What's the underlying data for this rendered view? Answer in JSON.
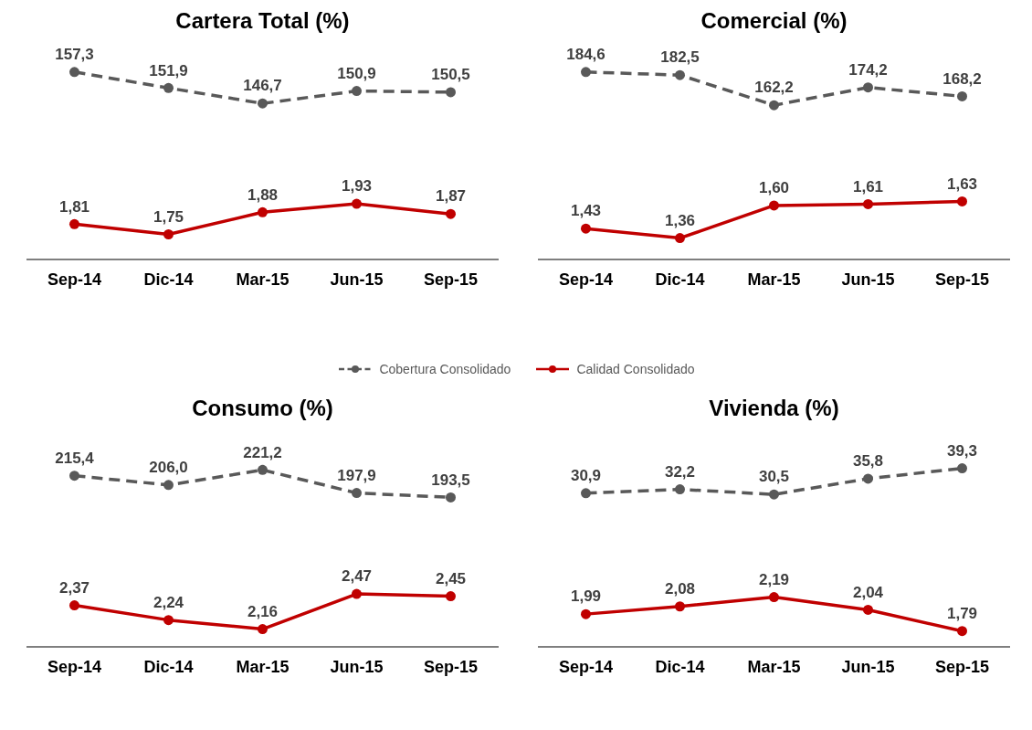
{
  "chart_data": [
    {
      "type": "line",
      "title": "Cartera Total (%)",
      "categories": [
        null,
        null,
        null,
        null,
        null
      ],
      "marker": "circle",
      "legend": "bottom",
      "tick_labels": false,
      "grid": false,
      "series": [
        {
          "name": "Cobertura Consolidado",
          "color": "#595959",
          "line_style": "dashed",
          "values": [
            157.3,
            151.9,
            146.7,
            150.9,
            150.5
          ],
          "value_labels": [
            "157,3",
            "151,9",
            "146,7",
            "150,9",
            "150,5"
          ]
        }
      ]
    },
    {
      "type": "line",
      "categories": [
        "Sep-14",
        "Dic-14",
        "Mar-15",
        "Jun-15",
        "Sep-15"
      ],
      "marker": "circle",
      "legend": "bottom",
      "tick_labels": "x",
      "grid": false,
      "series": [
        {
          "name": "Calidad Consolidado",
          "color": "#c00000",
          "line_style": "solid",
          "values": [
            1.81,
            1.75,
            1.88,
            1.93,
            1.87
          ],
          "value_labels": [
            "1,81",
            "1,75",
            "1,88",
            "1,93",
            "1,87"
          ]
        }
      ]
    },
    {
      "type": "line",
      "title": "Comercial (%)",
      "categories": [
        null,
        null,
        null,
        null,
        null
      ],
      "marker": "circle",
      "tick_labels": false,
      "grid": false,
      "series": [
        {
          "color": "#595959",
          "line_style": "dashed",
          "values": [
            184.6,
            182.5,
            162.2,
            174.2,
            168.2
          ],
          "value_labels": [
            "184,6",
            "182,5",
            "162,2",
            "174,2",
            "168,2"
          ]
        }
      ]
    },
    {
      "type": "line",
      "categories": [
        "Sep-14",
        "Dic-14",
        "Mar-15",
        "Jun-15",
        "Sep-15"
      ],
      "marker": "circle",
      "tick_labels": "x",
      "grid": false,
      "series": [
        {
          "color": "#c00000",
          "line_style": "solid",
          "values": [
            1.43,
            1.36,
            1.6,
            1.61,
            1.63
          ],
          "value_labels": [
            "1,43",
            "1,36",
            "1,60",
            "1,61",
            "1,63"
          ]
        }
      ]
    },
    {
      "type": "line",
      "title": "Consumo (%)",
      "categories": [
        null,
        null,
        null,
        null,
        null
      ],
      "marker": "circle",
      "tick_labels": false,
      "grid": false,
      "series": [
        {
          "color": "#595959",
          "line_style": "dashed",
          "values": [
            215.4,
            206.0,
            221.2,
            197.9,
            193.5
          ],
          "value_labels": [
            "215,4",
            "206,0",
            "221,2",
            "197,9",
            "193,5"
          ]
        }
      ]
    },
    {
      "type": "line",
      "categories": [
        "Sep-14",
        "Dic-14",
        "Mar-15",
        "Jun-15",
        "Sep-15"
      ],
      "marker": "circle",
      "tick_labels": "x",
      "grid": false,
      "series": [
        {
          "color": "#c00000",
          "line_style": "solid",
          "values": [
            2.37,
            2.24,
            2.16,
            2.47,
            2.45
          ],
          "value_labels": [
            "2,37",
            "2,24",
            "2,16",
            "2,47",
            "2,45"
          ]
        }
      ]
    },
    {
      "type": "line",
      "title": "Vivienda (%)",
      "categories": [
        null,
        null,
        null,
        null,
        null
      ],
      "marker": "circle",
      "tick_labels": false,
      "grid": false,
      "series": [
        {
          "color": "#595959",
          "line_style": "dashed",
          "values": [
            30.9,
            32.2,
            30.5,
            35.8,
            39.3
          ],
          "value_labels": [
            "30,9",
            "32,2",
            "30,5",
            "35,8",
            "39,3"
          ]
        }
      ]
    },
    {
      "type": "line",
      "categories": [
        "Sep-14",
        "Dic-14",
        "Mar-15",
        "Jun-15",
        "Sep-15"
      ],
      "marker": "circle",
      "tick_labels": "x",
      "grid": false,
      "series": [
        {
          "color": "#c00000",
          "line_style": "solid",
          "values": [
            1.99,
            2.08,
            2.19,
            2.04,
            1.79
          ],
          "value_labels": [
            "1,99",
            "2,08",
            "2,19",
            "2,04",
            "1,79"
          ]
        }
      ]
    }
  ]
}
